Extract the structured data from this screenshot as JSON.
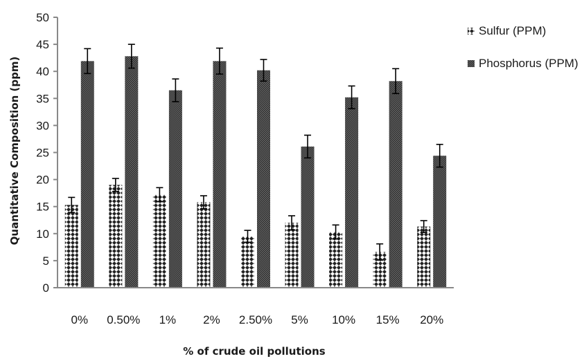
{
  "chart_data": {
    "type": "bar",
    "categories": [
      "0%",
      "0.50%",
      "1%",
      "2%",
      "2.50%",
      "5%",
      "10%",
      "15%",
      "20%"
    ],
    "series": [
      {
        "name": "Sulfur (PPM)",
        "values": [
          15.3,
          19.0,
          17.2,
          15.8,
          9.5,
          12.0,
          10.3,
          6.6,
          11.3
        ],
        "errors": [
          1.4,
          1.2,
          1.3,
          1.2,
          1.1,
          1.3,
          1.3,
          1.5,
          1.1
        ],
        "color": "#ffffff",
        "pattern": "checker"
      },
      {
        "name": "Phosphorus (PPM)",
        "values": [
          41.9,
          42.8,
          36.5,
          41.9,
          40.2,
          26.1,
          35.2,
          38.2,
          24.4
        ],
        "errors": [
          2.3,
          2.2,
          2.1,
          2.4,
          2.0,
          2.1,
          2.1,
          2.3,
          2.1
        ],
        "color": "#555555",
        "pattern": "dense"
      }
    ],
    "xlabel": "% of crude oil pollutions",
    "ylabel": "Quantitative Composition (ppm)",
    "ylim": [
      0,
      50
    ],
    "yticks": [
      0,
      5,
      10,
      15,
      20,
      25,
      30,
      35,
      40,
      45,
      50
    ],
    "grid": false,
    "legend": "right"
  }
}
